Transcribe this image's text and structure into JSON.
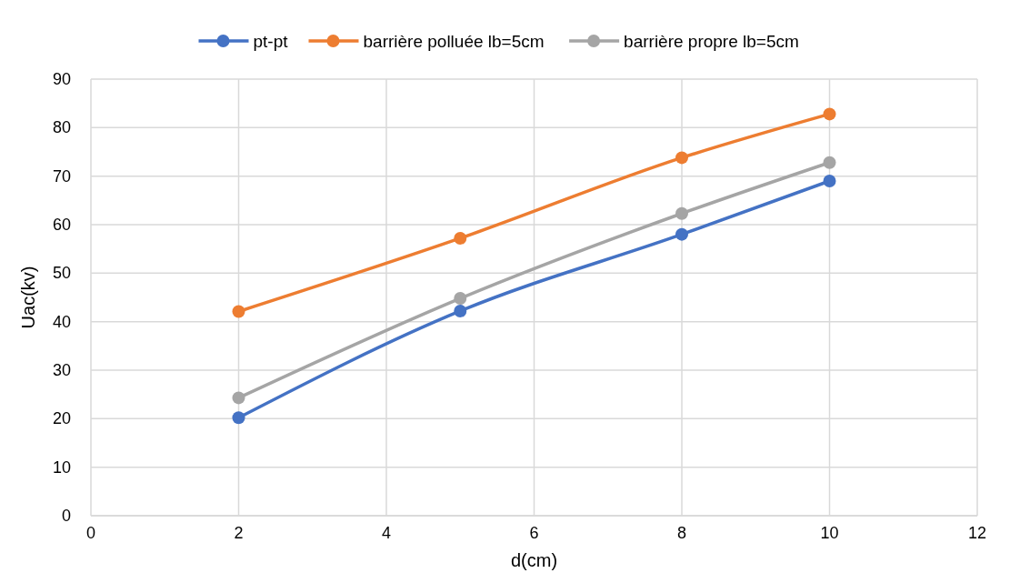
{
  "chart_data": {
    "type": "line",
    "xlabel": "d(cm)",
    "ylabel": "Uac(kv)",
    "x": [
      2,
      5,
      8,
      10
    ],
    "series": [
      {
        "name": "pt-pt",
        "color": "#4472c4",
        "values": [
          20.2,
          42.2,
          58,
          69
        ]
      },
      {
        "name": "barrière polluée lb=5cm",
        "color": "#ed7d31",
        "values": [
          42.1,
          57.2,
          73.8,
          82.8
        ]
      },
      {
        "name": "barrière propre lb=5cm",
        "color": "#a5a5a5",
        "values": [
          24.3,
          44.8,
          62.3,
          72.8
        ]
      }
    ],
    "xlim": [
      0,
      12
    ],
    "xticks": [
      0,
      2,
      4,
      6,
      8,
      10,
      12
    ],
    "ylim": [
      0,
      90
    ],
    "yticks": [
      0,
      10,
      20,
      30,
      40,
      50,
      60,
      70,
      80,
      90
    ],
    "grid": true,
    "legend": "top",
    "marker": "circle",
    "line_style": "solid"
  }
}
